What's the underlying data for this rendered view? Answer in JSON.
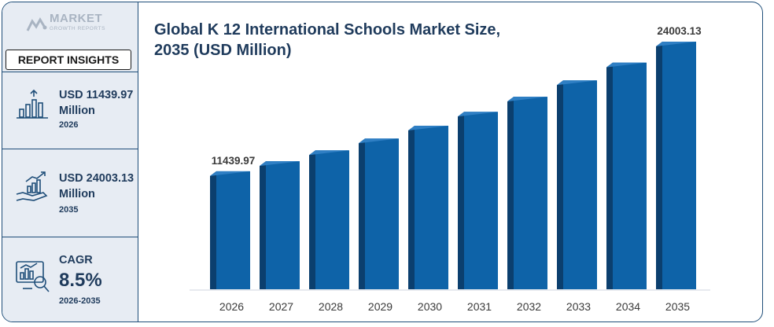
{
  "brand": {
    "name": "MARKET",
    "tagline": "GROWTH REPORTS"
  },
  "sidebar": {
    "tag": "REPORT INSIGHTS",
    "cards": [
      {
        "line1": "USD 11439.97",
        "line2": "Million",
        "line3": "2026",
        "icon": "bar-growth-icon"
      },
      {
        "line1": "USD 24003.13",
        "line2": "Million",
        "line3": "2035",
        "icon": "hand-growth-icon"
      },
      {
        "line1": "CAGR",
        "line2": "8.5%",
        "line3": "2026-2035",
        "icon": "analytics-icon"
      }
    ]
  },
  "colors": {
    "bar_front": "#0e63a8",
    "bar_side": "#0b3f6e",
    "bar_top": "#2f7fc4",
    "title": "#1f3b5c",
    "frame": "#1f4e79"
  },
  "chart_data": {
    "type": "bar",
    "title": "Global K 12 International Schools Market Size, 2035 (USD Million)",
    "title_line1": "Global K 12 International Schools Market Size,",
    "title_line2": "2035 (USD Million)",
    "categories": [
      "2026",
      "2027",
      "2028",
      "2029",
      "2030",
      "2031",
      "2032",
      "2033",
      "2034",
      "2035"
    ],
    "values": [
      11439.97,
      12412,
      13467,
      14612,
      15854,
      17202,
      18664,
      20250,
      21972,
      24003.13
    ],
    "data_labels": {
      "0": "11439.97",
      "9": "24003.13"
    },
    "xlabel": "",
    "ylabel": "",
    "ylim": [
      0,
      24003.13
    ],
    "grid": false,
    "legend": "none"
  }
}
